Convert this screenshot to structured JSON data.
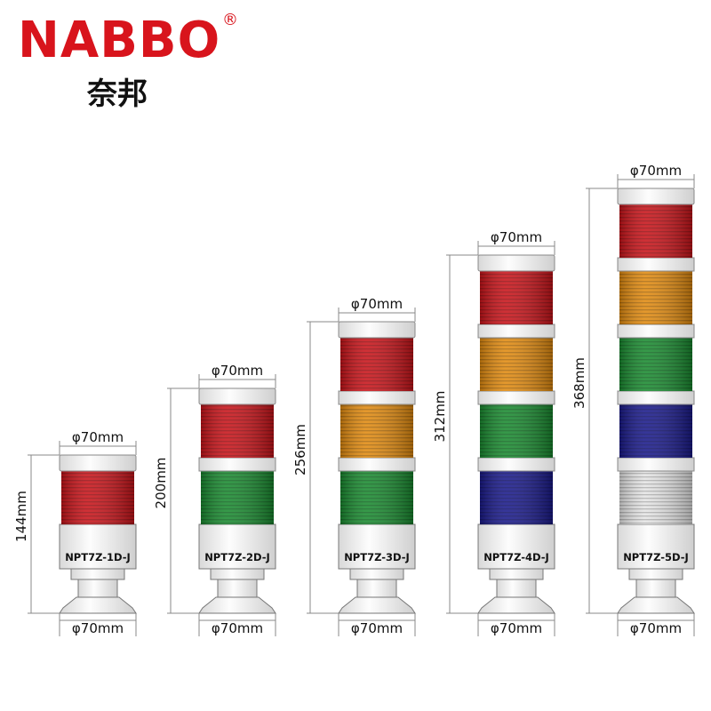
{
  "brand": {
    "logo": "NABBO",
    "registered": "®",
    "chinese": "奈邦"
  },
  "towers": [
    {
      "model": "NPT7Z-1D-J",
      "height": "144mm",
      "top_diameter": "φ70mm",
      "bottom_diameter": "φ70mm",
      "tiers": [
        "#c8141a"
      ]
    },
    {
      "model": "NPT7Z-2D-J",
      "height": "200mm",
      "top_diameter": "φ70mm",
      "bottom_diameter": "φ70mm",
      "tiers": [
        "#1a8a30",
        "#c8141a"
      ]
    },
    {
      "model": "NPT7Z-3D-J",
      "height": "256mm",
      "top_diameter": "φ70mm",
      "bottom_diameter": "φ70mm",
      "tiers": [
        "#1a8a30",
        "#e08a10",
        "#c8141a"
      ]
    },
    {
      "model": "NPT7Z-4D-J",
      "height": "312mm",
      "top_diameter": "φ70mm",
      "bottom_diameter": "φ70mm",
      "tiers": [
        "#1a1a8a",
        "#1a8a30",
        "#e08a10",
        "#c8141a"
      ]
    },
    {
      "model": "NPT7Z-5D-J",
      "height": "368mm",
      "top_diameter": "φ70mm",
      "bottom_diameter": "φ70mm",
      "tiers": [
        "#e4e4e4",
        "#1a1a8a",
        "#1a8a30",
        "#e08a10",
        "#c8141a"
      ]
    }
  ]
}
